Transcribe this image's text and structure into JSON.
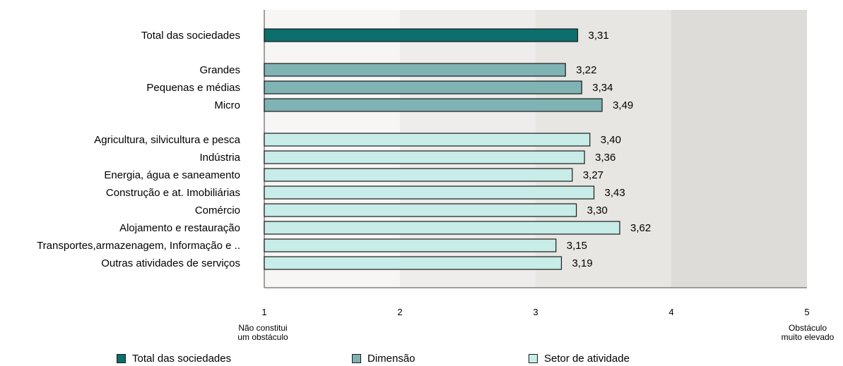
{
  "chart_data": {
    "type": "bar",
    "orientation": "horizontal",
    "categories": [
      "Total das sociedades",
      "Grandes",
      "Pequenas e médias",
      "Micro",
      "Agricultura, silvicultura e pesca",
      "Indústria",
      "Energia, água e saneamento",
      "Construção e at. Imobiliárias",
      "Comércio",
      "Alojamento e restauração",
      "Transportes,armazenagem, Informação e ..",
      "Outras atividades de serviços"
    ],
    "values": [
      3.31,
      3.22,
      3.34,
      3.49,
      3.4,
      3.36,
      3.27,
      3.43,
      3.3,
      3.62,
      3.15,
      3.19
    ],
    "value_labels": [
      "3,31",
      "3,22",
      "3,34",
      "3,49",
      "3,40",
      "3,36",
      "3,27",
      "3,43",
      "3,30",
      "3,62",
      "3,15",
      "3,19"
    ],
    "groups": [
      "Total das sociedades",
      "Dimensão",
      "Dimensão",
      "Dimensão",
      "Setor de atividade",
      "Setor de atividade",
      "Setor de atividade",
      "Setor de atividade",
      "Setor de atividade",
      "Setor de atividade",
      "Setor de atividade",
      "Setor de atividade"
    ],
    "xlim": [
      1,
      5
    ],
    "xticks": [
      "1",
      "2",
      "3",
      "4",
      "5"
    ],
    "x_min_label": [
      "Não constitui",
      "um obstáculo"
    ],
    "x_max_label": [
      "Obstáculo",
      "muito elevado"
    ],
    "legend": [
      {
        "name": "Total das sociedades",
        "color": "#0d6e6e"
      },
      {
        "name": "Dimensão",
        "color": "#7fb3b4"
      },
      {
        "name": "Setor de atividade",
        "color": "#c8ece8"
      }
    ],
    "legend_position": "bottom",
    "background_bands": [
      "#f7f6f4",
      "#eeedeb",
      "#e7e6e3",
      "#dedcd9"
    ]
  }
}
